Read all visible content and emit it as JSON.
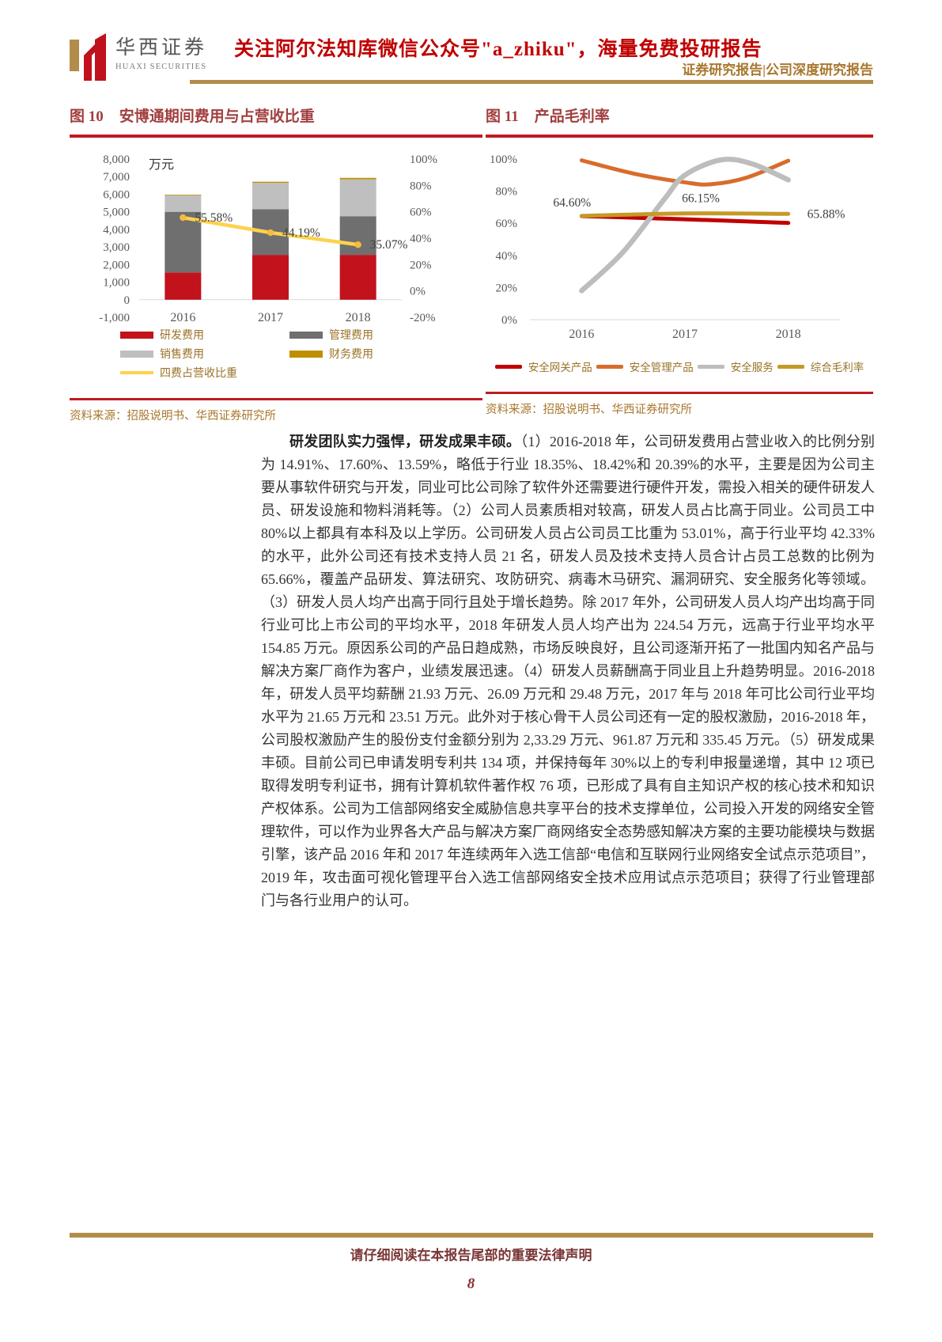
{
  "header": {
    "logo_cn": "华西证券",
    "logo_en": "HUAXI SECURITIES",
    "banner": "关注阿尔法知库微信公众号\"a_zhiku\"，海量免费投研报告",
    "subtitle": "证券研究报告|公司深度研究报告"
  },
  "fig10": {
    "tag": "图 10",
    "title": "安博通期间费用与占营收比重",
    "source": "资料来源：招股说明书、华西证券研究所"
  },
  "fig11": {
    "tag": "图 11",
    "title": "产品毛利率",
    "source": "资料来源：招股说明书、华西证券研究所"
  },
  "body": {
    "lead": "研发团队实力强悍，研发成果丰硕。",
    "text": "（1）2016-2018 年，公司研发费用占营业收入的比例分别为 14.91%、17.60%、13.59%，略低于行业 18.35%、18.42%和 20.39%的水平，主要是因为公司主要从事软件研究与开发，同业可比公司除了软件外还需要进行硬件开发，需投入相关的硬件研发人员、研发设施和物料消耗等。（2）公司人员素质相对较高，研发人员占比高于同业。公司员工中 80%以上都具有本科及以上学历。公司研发人员占公司员工比重为 53.01%，高于行业平均 42.33%的水平，此外公司还有技术支持人员 21 名，研发人员及技术支持人员合计占员工总数的比例为 65.66%，覆盖产品研发、算法研究、攻防研究、病毒木马研究、漏洞研究、安全服务化等领域。（3）研发人员人均产出高于同行且处于增长趋势。除 2017 年外，公司研发人员人均产出均高于同行业可比上市公司的平均水平，2018 年研发人员人均产出为 224.54 万元，远高于行业平均水平 154.85 万元。原因系公司的产品日趋成熟，市场反映良好，且公司逐渐开拓了一批国内知名产品与解决方案厂商作为客户，业绩发展迅速。（4）研发人员薪酬高于同业且上升趋势明显。2016-2018 年，研发人员平均薪酬 21.93 万元、26.09 万元和 29.48 万元，2017 年与 2018 年可比公司行业平均水平为 21.65 万元和 23.51 万元。此外对于核心骨干人员公司还有一定的股权激励，2016-2018 年，公司股权激励产生的股份支付金额分别为 2,33.29 万元、961.87 万元和 335.45 万元。（5）研发成果丰硕。目前公司已申请发明专利共 134 项，并保持每年 30%以上的专利申报量递增，其中 12 项已取得发明专利证书，拥有计算机软件著作权 76 项，已形成了具有自主知识产权的核心技术和知识产权体系。公司为工信部网络安全威胁信息共享平台的技术支撑单位，公司投入开发的网络安全管理软件，可以作为业界各大产品与解决方案厂商网络安全态势感知解决方案的主要功能模块与数据引擎，该产品 2016 年和 2017 年连续两年入选工信部“电信和互联网行业网络安全试点示范项目”，2019 年，攻击面可视化管理平台入选工信部网络安全技术应用试点示范项目；获得了行业管理部门与各行业用户的认可。"
  },
  "footer": {
    "disclaimer": "请仔细阅读在本报告尾部的重要法律声明",
    "page": "8"
  },
  "chart_data": [
    {
      "type": "bar",
      "title": "安博通期间费用与占营收比重",
      "unit": "万元",
      "categories": [
        "2016",
        "2017",
        "2018"
      ],
      "bar_series": [
        {
          "name": "研发费用",
          "color": "#C2121C",
          "values": [
            1550,
            2550,
            2550
          ]
        },
        {
          "name": "管理费用",
          "color": "#6F6F6F",
          "values": [
            3450,
            2600,
            2200
          ]
        },
        {
          "name": "销售费用",
          "color": "#BFBFBF",
          "values": [
            950,
            1500,
            2100
          ]
        },
        {
          "name": "财务费用",
          "color": "#BF8F00",
          "values": [
            20,
            60,
            80
          ]
        }
      ],
      "line_series": {
        "name": "四费占营收比重",
        "color": "#FFD24D",
        "axis": "right",
        "values": [
          55.58,
          44.19,
          35.07
        ],
        "labels": [
          "55.58%",
          "44.19%",
          "35.07%"
        ]
      },
      "y_left": {
        "min": -1000,
        "max": 8000,
        "ticks": [
          "8,000",
          "7,000",
          "6,000",
          "5,000",
          "4,000",
          "3,000",
          "2,000",
          "1,000",
          "0",
          "-1,000"
        ]
      },
      "y_right": {
        "min": -20,
        "max": 100,
        "ticks": [
          "100%",
          "80%",
          "60%",
          "40%",
          "20%",
          "0%",
          "-20%"
        ]
      },
      "legend_position": "bottom",
      "grid": false
    },
    {
      "type": "line",
      "title": "产品毛利率",
      "categories": [
        "2016",
        "2017",
        "2018"
      ],
      "ylim": [
        0,
        100
      ],
      "y_ticks": [
        "100%",
        "80%",
        "60%",
        "40%",
        "20%",
        "0%"
      ],
      "series": [
        {
          "name": "安全网关产品",
          "color": "#C00000",
          "values": [
            64.5,
            62.5,
            60.2
          ],
          "draw": [
            [
              0,
              64.5
            ],
            [
              1,
              62.5
            ],
            [
              2,
              60.2
            ]
          ]
        },
        {
          "name": "安全管理产品",
          "color": "#D86C2B",
          "values": [
            99,
            85,
            99
          ],
          "draw": [
            [
              0,
              99.2
            ],
            [
              0.5,
              91
            ],
            [
              1,
              85.5
            ],
            [
              1.25,
              84.3
            ],
            [
              1.6,
              88.5
            ],
            [
              2,
              99
            ]
          ]
        },
        {
          "name": "安全服务",
          "color": "#BDBDBD",
          "values": [
            18,
            90,
            87
          ],
          "draw": [
            [
              0,
              18
            ],
            [
              0.4,
              42
            ],
            [
              0.8,
              75
            ],
            [
              1,
              90
            ],
            [
              1.35,
              99.5
            ],
            [
              1.65,
              97
            ],
            [
              2,
              87
            ]
          ]
        },
        {
          "name": "综合毛利率",
          "color": "#C49A27",
          "values": [
            64.6,
            66.15,
            65.88
          ],
          "labels": [
            "64.60%",
            "66.15%",
            "65.88%"
          ],
          "draw": [
            [
              0,
              64.6
            ],
            [
              1,
              66.15
            ],
            [
              2,
              65.88
            ]
          ]
        }
      ],
      "legend_position": "bottom",
      "grid": false
    }
  ]
}
